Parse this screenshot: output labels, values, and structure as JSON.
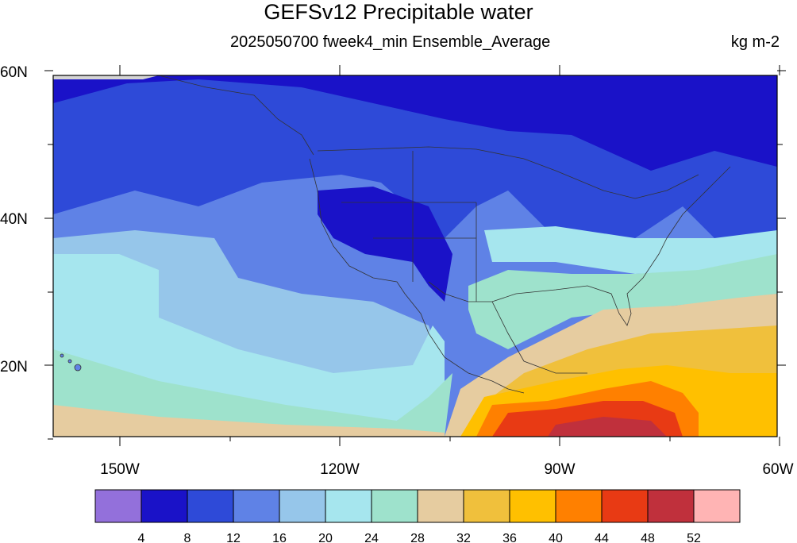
{
  "title": "GEFSv12 Precipitable water",
  "left_string": "2025050700 fweek4_min Ensemble_Average",
  "right_string": "kg m-2",
  "lat_labels": [
    "60N",
    "40N",
    "20N"
  ],
  "lon_labels": [
    "150W",
    "120W",
    "90W",
    "60W"
  ],
  "colorbar": {
    "levels": [
      "4",
      "8",
      "12",
      "16",
      "20",
      "24",
      "28",
      "32",
      "36",
      "40",
      "44",
      "48",
      "52"
    ],
    "colors": [
      "#9370db",
      "#1a12c8",
      "#2e4ad8",
      "#5f82e6",
      "#96c6ea",
      "#a6e6ee",
      "#9ee2cc",
      "#e6cca0",
      "#f0c03c",
      "#ffc000",
      "#ff8000",
      "#e83a14",
      "#c0303c",
      "#ffb4b4"
    ]
  },
  "colors": {
    "missing": "#d4d4d4",
    "coast": "#333333"
  }
}
